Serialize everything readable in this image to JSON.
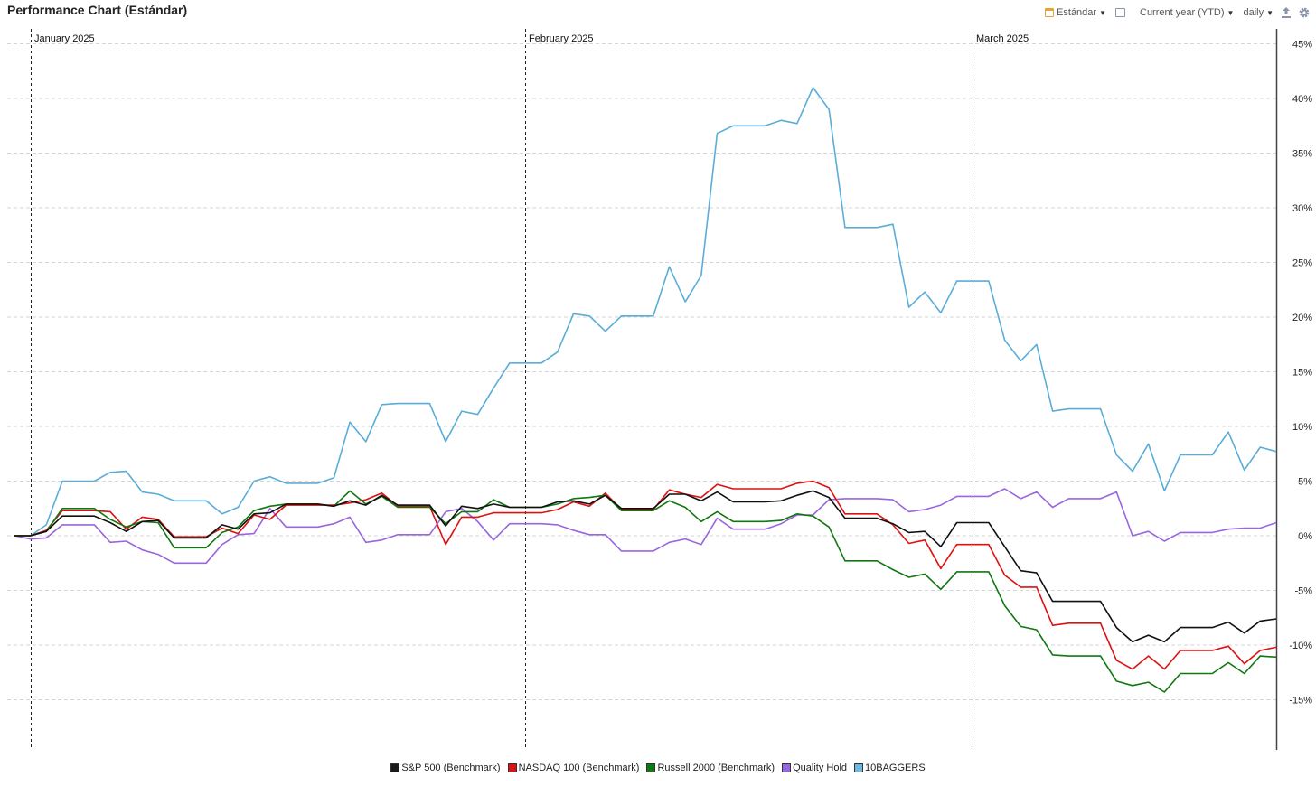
{
  "header": {
    "title": "Performance Chart (Estándar)",
    "style_label": "Estándar",
    "range_label": "Current year (YTD)",
    "interval_label": "daily"
  },
  "icons": {
    "style": "calendar-icon",
    "fullscreen": "fullscreen-icon",
    "export": "upload-icon",
    "settings": "gear-icon"
  },
  "chart_data": {
    "type": "line",
    "x_axis_months": [
      "January 2025",
      "February 2025",
      "March 2025"
    ],
    "y_ticks": [
      "45%",
      "40%",
      "35%",
      "30%",
      "25%",
      "20%",
      "15%",
      "10%",
      "5%",
      "0%",
      "-5%",
      "-10%",
      "-15%"
    ],
    "ylim": [
      -19.5,
      46.5
    ],
    "grid": true,
    "legend_position": "bottom",
    "series": [
      {
        "name": "10BAGGERS",
        "color": "#5aadd8",
        "values": [
          0,
          0,
          1,
          5,
          5,
          5,
          5.8,
          5.9,
          4,
          3.8,
          3.2,
          3.2,
          3.2,
          2,
          2.6,
          5,
          5.4,
          4.8,
          4.8,
          4.8,
          5.3,
          10.4,
          8.6,
          12,
          12.1,
          12.1,
          12.1,
          8.6,
          11.4,
          11.1,
          13.5,
          15.8,
          15.8,
          15.8,
          16.8,
          20.3,
          20.1,
          18.7,
          20.1,
          20.1,
          20.1,
          24.6,
          21.4,
          23.8,
          36.8,
          37.5,
          37.5,
          37.5,
          38,
          37.7,
          41,
          39,
          28.2,
          28.2,
          28.2,
          28.5,
          20.9,
          22.3,
          20.4,
          23.3,
          23.3,
          23.3,
          17.9,
          16,
          17.5,
          11.4,
          11.6,
          11.6,
          11.6,
          7.4,
          5.9,
          8.4,
          4.1,
          7.4,
          7.4,
          7.4,
          9.5,
          6,
          8.1,
          7.7
        ]
      },
      {
        "name": "Quality Hold",
        "color": "#9966dd",
        "values": [
          0,
          -0.3,
          -0.2,
          1,
          1,
          1,
          -0.6,
          -0.5,
          -1.3,
          -1.7,
          -2.5,
          -2.5,
          -2.5,
          -0.8,
          0.1,
          0.2,
          2.5,
          0.8,
          0.8,
          0.8,
          1.1,
          1.7,
          -0.6,
          -0.4,
          0.1,
          0.1,
          0.1,
          2.2,
          2.5,
          1.3,
          -0.4,
          1.1,
          1.1,
          1.1,
          1,
          0.5,
          0.1,
          0.1,
          -1.4,
          -1.4,
          -1.4,
          -0.6,
          -0.3,
          -0.8,
          1.6,
          0.6,
          0.6,
          0.6,
          1.1,
          1.9,
          1.9,
          3.3,
          3.4,
          3.4,
          3.4,
          3.3,
          2.2,
          2.4,
          2.8,
          3.6,
          3.6,
          3.6,
          4.3,
          3.4,
          4,
          2.6,
          3.4,
          3.4,
          3.4,
          4,
          0,
          0.4,
          -0.5,
          0.3,
          0.3,
          0.3,
          0.6,
          0.7,
          0.7,
          1.2
        ]
      },
      {
        "name": "NASDAQ 100 (Benchmark)",
        "color": "#dd1111",
        "values": [
          0,
          0,
          0.5,
          2.3,
          2.3,
          2.3,
          2.2,
          0.6,
          1.7,
          1.5,
          -0.1,
          -0.1,
          -0.1,
          0.7,
          0.2,
          1.9,
          1.5,
          2.8,
          2.8,
          2.8,
          2.8,
          3,
          3.3,
          3.9,
          2.7,
          2.7,
          2.7,
          -0.8,
          1.7,
          1.7,
          2.1,
          2.1,
          2.1,
          2.1,
          2.4,
          3.1,
          2.7,
          3.9,
          2.4,
          2.4,
          2.4,
          4.2,
          3.8,
          3.5,
          4.7,
          4.3,
          4.3,
          4.3,
          4.3,
          4.8,
          5,
          4.4,
          2,
          2,
          2,
          1,
          -0.7,
          -0.4,
          -3,
          -0.8,
          -0.8,
          -0.8,
          -3.6,
          -4.7,
          -4.7,
          -8.2,
          -8,
          -8,
          -8,
          -11.4,
          -12.2,
          -11,
          -12.2,
          -10.5,
          -10.5,
          -10.5,
          -10.1,
          -11.7,
          -10.5,
          -10.2
        ]
      },
      {
        "name": "Russell 2000 (Benchmark)",
        "color": "#117711",
        "values": [
          0,
          0,
          0.4,
          2.5,
          2.5,
          2.5,
          1.5,
          0.8,
          1.3,
          1.2,
          -1.1,
          -1.1,
          -1.1,
          0.3,
          0.8,
          2.3,
          2.7,
          2.9,
          2.9,
          2.9,
          2.7,
          4.1,
          2.9,
          3.6,
          2.6,
          2.6,
          2.6,
          1.1,
          2.2,
          2.2,
          3.3,
          2.6,
          2.6,
          2.6,
          2.9,
          3.4,
          3.5,
          3.7,
          2.3,
          2.3,
          2.3,
          3.2,
          2.6,
          1.3,
          2.2,
          1.3,
          1.3,
          1.3,
          1.4,
          2,
          1.8,
          0.8,
          -2.3,
          -2.3,
          -2.3,
          -3.1,
          -3.8,
          -3.5,
          -4.9,
          -3.3,
          -3.3,
          -3.3,
          -6.4,
          -8.3,
          -8.6,
          -10.9,
          -11,
          -11,
          -11,
          -13.3,
          -13.7,
          -13.4,
          -14.3,
          -12.6,
          -12.6,
          -12.6,
          -11.6,
          -12.6,
          -11,
          -11.1
        ]
      },
      {
        "name": "S&P 500  (Benchmark)",
        "color": "#111111",
        "values": [
          0,
          0,
          0.4,
          1.8,
          1.8,
          1.8,
          1.2,
          0.4,
          1.3,
          1.4,
          -0.2,
          -0.2,
          -0.2,
          1,
          0.6,
          2,
          2.1,
          2.9,
          2.9,
          2.9,
          2.7,
          3.2,
          2.8,
          3.7,
          2.8,
          2.8,
          2.8,
          0.9,
          2.7,
          2.5,
          2.9,
          2.6,
          2.6,
          2.6,
          3.1,
          3.2,
          2.9,
          3.7,
          2.5,
          2.5,
          2.5,
          3.8,
          3.8,
          3.2,
          4,
          3.1,
          3.1,
          3.1,
          3.2,
          3.7,
          4.1,
          3.5,
          1.6,
          1.6,
          1.6,
          1.1,
          0.3,
          0.4,
          -1,
          1.2,
          1.2,
          1.2,
          -1,
          -3.2,
          -3.4,
          -6,
          -6,
          -6,
          -6,
          -8.4,
          -9.7,
          -9.1,
          -9.7,
          -8.4,
          -8.4,
          -8.4,
          -7.9,
          -8.9,
          -7.8,
          -7.6
        ]
      }
    ],
    "legend": [
      {
        "name": "S&P 500  (Benchmark)",
        "color": "#1a1a1a"
      },
      {
        "name": "NASDAQ 100 (Benchmark)",
        "color": "#dd1111"
      },
      {
        "name": "Russell 2000 (Benchmark)",
        "color": "#117711"
      },
      {
        "name": "Quality Hold",
        "color": "#9966dd"
      },
      {
        "name": "10BAGGERS",
        "color": "#6db8e0"
      }
    ]
  }
}
